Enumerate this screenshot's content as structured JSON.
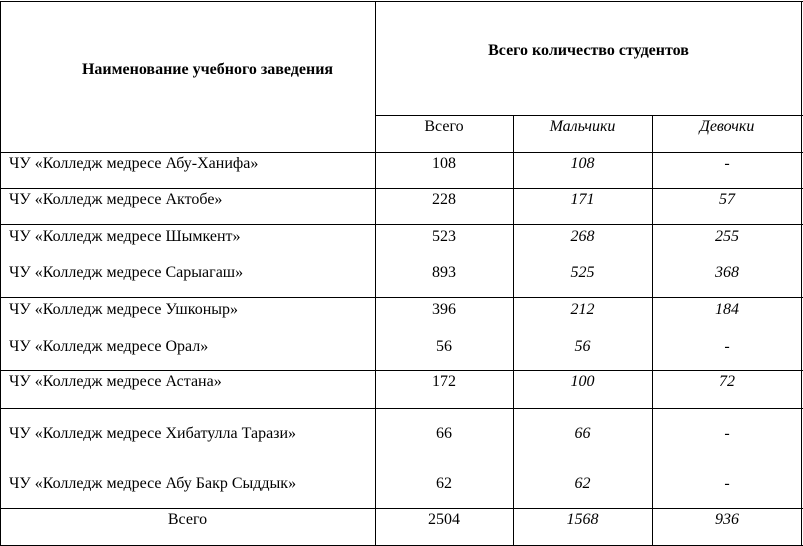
{
  "table": {
    "header": {
      "name_col": "Наименование учебного заведения",
      "group_col": "Всего количество студентов",
      "sub_cols": [
        "Всего",
        "Мальчики",
        "Девочки"
      ]
    },
    "rows": [
      {
        "name": "ЧУ «Колледж медресе Абу-Ханифа»",
        "total": "108",
        "boys": "108",
        "girls": "-"
      },
      {
        "name": "ЧУ «Колледж медресе Актобе»",
        "total": "228",
        "boys": "171",
        "girls": "57"
      },
      {
        "name": "ЧУ «Колледж медресе Шымкент»",
        "total": "523",
        "boys": "268",
        "girls": "255"
      },
      {
        "name": "ЧУ «Колледж медресе Сарыагаш»",
        "total": "893",
        "boys": "525",
        "girls": "368"
      },
      {
        "name": "ЧУ «Колледж медресе Ушконыр»",
        "total": "396",
        "boys": "212",
        "girls": "184"
      },
      {
        "name": "ЧУ «Колледж медресе Орал»",
        "total": "56",
        "boys": "56",
        "girls": "-"
      },
      {
        "name": "ЧУ «Колледж медресе Астана»",
        "total": "172",
        "boys": "100",
        "girls": "72"
      },
      {
        "name": "ЧУ «Колледж медресе Хибатулла Тарази»",
        "total": "66",
        "boys": "66",
        "girls": "-"
      },
      {
        "name": "ЧУ «Колледж медресе Абу Бакр Сыддык»",
        "total": "62",
        "boys": "62",
        "girls": "-"
      }
    ],
    "footer": {
      "name": "Всего",
      "total": "2504",
      "boys": "1568",
      "girls": "936"
    }
  }
}
